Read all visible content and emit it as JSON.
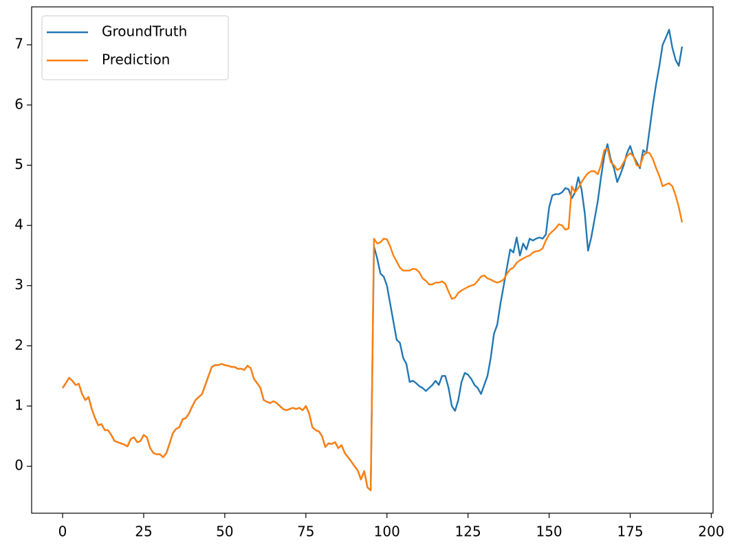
{
  "chart_data": {
    "type": "line",
    "x": [
      0,
      1,
      2,
      3,
      4,
      5,
      6,
      7,
      8,
      9,
      10,
      11,
      12,
      13,
      14,
      15,
      16,
      17,
      18,
      19,
      20,
      21,
      22,
      23,
      24,
      25,
      26,
      27,
      28,
      29,
      30,
      31,
      32,
      33,
      34,
      35,
      36,
      37,
      38,
      39,
      40,
      41,
      42,
      43,
      44,
      45,
      46,
      47,
      48,
      49,
      50,
      51,
      52,
      53,
      54,
      55,
      56,
      57,
      58,
      59,
      60,
      61,
      62,
      63,
      64,
      65,
      66,
      67,
      68,
      69,
      70,
      71,
      72,
      73,
      74,
      75,
      76,
      77,
      78,
      79,
      80,
      81,
      82,
      83,
      84,
      85,
      86,
      87,
      88,
      89,
      90,
      91,
      92,
      93,
      94,
      95,
      96,
      97,
      98,
      99,
      100,
      101,
      102,
      103,
      104,
      105,
      106,
      107,
      108,
      109,
      110,
      111,
      112,
      113,
      114,
      115,
      116,
      117,
      118,
      119,
      120,
      121,
      122,
      123,
      124,
      125,
      126,
      127,
      128,
      129,
      130,
      131,
      132,
      133,
      134,
      135,
      136,
      137,
      138,
      139,
      140,
      141,
      142,
      143,
      144,
      145,
      146,
      147,
      148,
      149,
      150,
      151,
      152,
      153,
      154,
      155,
      156,
      157,
      158,
      159,
      160,
      161,
      162,
      163,
      164,
      165,
      166,
      167,
      168,
      169,
      170,
      171,
      172,
      173,
      174,
      175,
      176,
      177,
      178,
      179,
      180,
      181,
      182,
      183,
      184,
      185,
      186,
      187,
      188,
      189,
      190,
      191
    ],
    "series": [
      {
        "name": "GroundTruth",
        "color": "#1f77b4",
        "values": [
          1.3,
          1.38,
          1.47,
          1.42,
          1.35,
          1.37,
          1.2,
          1.1,
          1.15,
          0.95,
          0.8,
          0.68,
          0.7,
          0.6,
          0.6,
          0.52,
          0.42,
          0.4,
          0.38,
          0.36,
          0.33,
          0.45,
          0.48,
          0.4,
          0.42,
          0.52,
          0.48,
          0.3,
          0.22,
          0.2,
          0.2,
          0.15,
          0.22,
          0.38,
          0.55,
          0.62,
          0.65,
          0.78,
          0.8,
          0.88,
          1.0,
          1.1,
          1.15,
          1.2,
          1.35,
          1.5,
          1.65,
          1.68,
          1.68,
          1.7,
          1.68,
          1.67,
          1.65,
          1.65,
          1.62,
          1.62,
          1.6,
          1.67,
          1.63,
          1.45,
          1.38,
          1.3,
          1.1,
          1.07,
          1.05,
          1.08,
          1.05,
          1.0,
          0.95,
          0.93,
          0.95,
          0.97,
          0.95,
          0.97,
          0.93,
          1.0,
          0.88,
          0.65,
          0.6,
          0.58,
          0.5,
          0.32,
          0.38,
          0.37,
          0.4,
          0.3,
          0.35,
          0.22,
          0.15,
          0.08,
          0.0,
          -0.07,
          -0.22,
          -0.08,
          -0.35,
          -0.4,
          3.65,
          3.45,
          3.2,
          3.15,
          3.0,
          2.7,
          2.4,
          2.1,
          2.05,
          1.8,
          1.7,
          1.4,
          1.42,
          1.38,
          1.33,
          1.3,
          1.25,
          1.3,
          1.35,
          1.42,
          1.35,
          1.5,
          1.5,
          1.3,
          1.0,
          0.92,
          1.1,
          1.4,
          1.55,
          1.52,
          1.45,
          1.35,
          1.3,
          1.2,
          1.35,
          1.5,
          1.8,
          2.2,
          2.35,
          2.7,
          3.0,
          3.3,
          3.6,
          3.55,
          3.8,
          3.5,
          3.7,
          3.6,
          3.78,
          3.75,
          3.78,
          3.8,
          3.78,
          3.85,
          4.3,
          4.5,
          4.52,
          4.52,
          4.55,
          4.62,
          4.6,
          4.45,
          4.55,
          4.8,
          4.6,
          4.2,
          3.58,
          3.8,
          4.1,
          4.4,
          4.8,
          5.15,
          5.35,
          5.1,
          4.95,
          4.72,
          4.85,
          5.0,
          5.2,
          5.32,
          5.15,
          5.05,
          4.95,
          5.25,
          5.2,
          5.6,
          6.0,
          6.35,
          6.65,
          7.0,
          7.12,
          7.25,
          6.95,
          6.75,
          6.65,
          6.97
        ]
      },
      {
        "name": "Prediction",
        "color": "#ff7f0e",
        "values": [
          1.3,
          1.38,
          1.47,
          1.42,
          1.35,
          1.37,
          1.2,
          1.1,
          1.15,
          0.95,
          0.8,
          0.68,
          0.7,
          0.6,
          0.6,
          0.52,
          0.42,
          0.4,
          0.38,
          0.36,
          0.33,
          0.45,
          0.48,
          0.4,
          0.42,
          0.52,
          0.48,
          0.3,
          0.22,
          0.2,
          0.2,
          0.15,
          0.22,
          0.38,
          0.55,
          0.62,
          0.65,
          0.78,
          0.8,
          0.88,
          1.0,
          1.1,
          1.15,
          1.2,
          1.35,
          1.5,
          1.65,
          1.68,
          1.68,
          1.7,
          1.68,
          1.67,
          1.65,
          1.65,
          1.62,
          1.62,
          1.6,
          1.67,
          1.63,
          1.45,
          1.38,
          1.3,
          1.1,
          1.07,
          1.05,
          1.08,
          1.05,
          1.0,
          0.95,
          0.93,
          0.95,
          0.97,
          0.95,
          0.97,
          0.93,
          1.0,
          0.88,
          0.65,
          0.6,
          0.58,
          0.5,
          0.32,
          0.38,
          0.37,
          0.4,
          0.3,
          0.35,
          0.22,
          0.15,
          0.08,
          0.0,
          -0.07,
          -0.22,
          -0.08,
          -0.35,
          -0.4,
          3.78,
          3.7,
          3.72,
          3.78,
          3.77,
          3.65,
          3.5,
          3.4,
          3.3,
          3.25,
          3.25,
          3.25,
          3.28,
          3.27,
          3.22,
          3.12,
          3.08,
          3.02,
          3.02,
          3.05,
          3.05,
          3.07,
          3.03,
          2.9,
          2.78,
          2.8,
          2.88,
          2.92,
          2.95,
          2.98,
          3.0,
          3.02,
          3.08,
          3.15,
          3.17,
          3.12,
          3.1,
          3.07,
          3.05,
          3.07,
          3.1,
          3.2,
          3.27,
          3.3,
          3.38,
          3.42,
          3.45,
          3.48,
          3.5,
          3.55,
          3.57,
          3.58,
          3.62,
          3.75,
          3.85,
          3.9,
          3.95,
          4.02,
          4.0,
          3.93,
          3.95,
          4.65,
          4.55,
          4.62,
          4.72,
          4.8,
          4.87,
          4.9,
          4.9,
          4.85,
          5.0,
          5.25,
          5.28,
          5.05,
          5.0,
          4.92,
          4.95,
          5.05,
          5.15,
          5.2,
          5.15,
          5.0,
          4.98,
          5.15,
          5.22,
          5.2,
          5.1,
          4.95,
          4.82,
          4.65,
          4.68,
          4.7,
          4.65,
          4.5,
          4.3,
          4.05
        ]
      }
    ],
    "xlim": [
      -9.55,
      200.55
    ],
    "ylim": [
      -0.78,
      7.63
    ],
    "xticks": [
      0,
      25,
      50,
      75,
      100,
      125,
      150,
      175,
      200
    ],
    "yticks": [
      0,
      1,
      2,
      3,
      4,
      5,
      6,
      7
    ],
    "grid": false,
    "legend": "upper-left"
  }
}
